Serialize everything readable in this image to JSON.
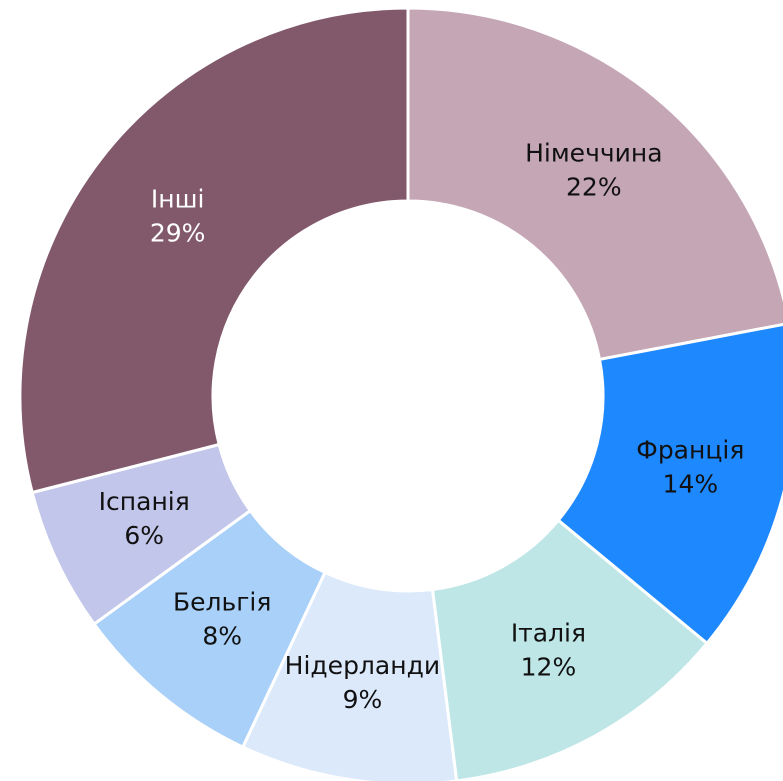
{
  "chart_data": {
    "type": "donut",
    "categories": [
      "Німеччина",
      "Франція",
      "Італія",
      "Нідерланди",
      "Бельгія",
      "Іспанія",
      "Інші"
    ],
    "values": [
      22,
      14,
      12,
      9,
      8,
      6,
      29
    ],
    "value_labels": [
      "22%",
      "14%",
      "12%",
      "9%",
      "8%",
      "6%",
      "29%"
    ],
    "colors": [
      "#c4a6b4",
      "#1e88ff",
      "#bfe6e6",
      "#dbe9fb",
      "#a8d0f8",
      "#c2c6ea",
      "#82596b"
    ]
  }
}
